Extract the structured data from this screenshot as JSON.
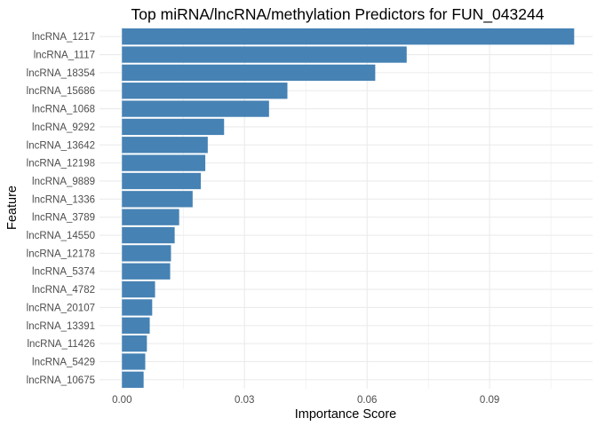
{
  "chart_data": {
    "type": "bar",
    "orientation": "horizontal",
    "title": "Top miRNA/lncRNA/methylation Predictors for FUN_043244",
    "xlabel": "Importance Score",
    "ylabel": "Feature",
    "categories": [
      "lncRNA_1217",
      "lncRNA_1117",
      "lncRNA_18354",
      "lncRNA_15686",
      "lncRNA_1068",
      "lncRNA_9292",
      "lncRNA_13642",
      "lncRNA_12198",
      "lncRNA_9889",
      "lncRNA_1336",
      "lncRNA_3789",
      "lncRNA_14550",
      "lncRNA_12178",
      "lncRNA_5374",
      "lncRNA_4782",
      "lncRNA_20107",
      "lncRNA_13391",
      "lncRNA_11426",
      "lncRNA_5429",
      "lncRNA_10675"
    ],
    "values": [
      0.1107,
      0.0697,
      0.062,
      0.0405,
      0.036,
      0.025,
      0.021,
      0.0204,
      0.0193,
      0.0173,
      0.014,
      0.0129,
      0.012,
      0.0118,
      0.0081,
      0.0074,
      0.0068,
      0.0061,
      0.0057,
      0.0053
    ],
    "xticks": [
      0.0,
      0.03,
      0.06,
      0.09
    ],
    "xtick_labels": [
      "0.00",
      "0.03",
      "0.06",
      "0.09"
    ],
    "xlim": [
      -0.0055,
      0.1152
    ],
    "bar_color": "#4682B4",
    "grid": true,
    "grid_color": "#ebebeb",
    "legend": "none"
  }
}
